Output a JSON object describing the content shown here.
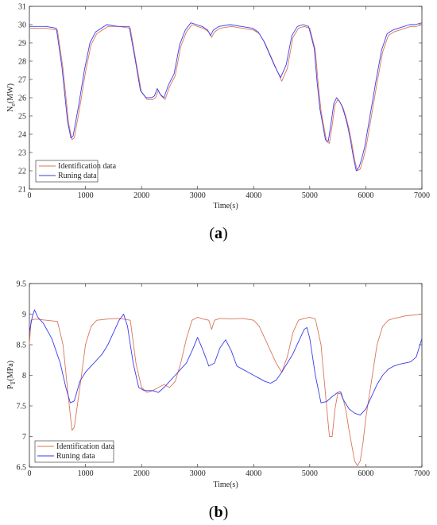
{
  "colors": {
    "identification": "#d9765a",
    "running": "#3a3af0",
    "axis": "#262626"
  },
  "chart_data": [
    {
      "type": "line",
      "panel_label": "a",
      "xlabel": "Time(s)",
      "ylabel_main": "N",
      "ylabel_sub": "e",
      "ylabel_unit": "(MW)",
      "xlim": [
        0,
        7000
      ],
      "ylim": [
        21,
        31
      ],
      "xticks": [
        0,
        1000,
        2000,
        3000,
        4000,
        5000,
        6000,
        7000
      ],
      "yticks": [
        21,
        22,
        23,
        24,
        25,
        26,
        27,
        28,
        29,
        30,
        31
      ],
      "grid": false,
      "legend_position": "bottom-left",
      "series": [
        {
          "name": "Identification data",
          "color_key": "identification",
          "x": [
            0,
            300,
            500,
            600,
            700,
            760,
            800,
            900,
            1000,
            1100,
            1200,
            1400,
            1600,
            1800,
            1900,
            2000,
            2100,
            2200,
            2250,
            2300,
            2350,
            2420,
            2500,
            2600,
            2700,
            2800,
            2900,
            3000,
            3100,
            3200,
            3250,
            3300,
            3400,
            3600,
            3800,
            4000,
            4100,
            4200,
            4300,
            4400,
            4500,
            4600,
            4700,
            4800,
            4900,
            5000,
            5100,
            5150,
            5200,
            5300,
            5350,
            5400,
            5450,
            5500,
            5550,
            5600,
            5650,
            5700,
            5750,
            5800,
            5850,
            5900,
            5950,
            6000,
            6100,
            6200,
            6300,
            6400,
            6500,
            6600,
            6700,
            6800,
            6900,
            7000
          ],
          "values": [
            29.8,
            29.8,
            29.7,
            27.6,
            24.6,
            23.7,
            23.8,
            25.5,
            27.4,
            28.9,
            29.5,
            29.9,
            29.9,
            29.8,
            28.0,
            26.3,
            25.9,
            25.9,
            26.0,
            26.4,
            26.1,
            25.9,
            26.6,
            27.2,
            28.8,
            29.6,
            30.0,
            29.9,
            29.8,
            29.6,
            29.3,
            29.6,
            29.8,
            29.9,
            29.8,
            29.7,
            29.5,
            29.0,
            28.3,
            27.6,
            26.9,
            27.6,
            29.3,
            29.8,
            29.9,
            29.8,
            28.6,
            26.8,
            25.3,
            23.6,
            23.5,
            24.5,
            25.6,
            25.9,
            25.7,
            25.4,
            24.9,
            24.3,
            23.5,
            22.6,
            22.0,
            22.1,
            22.6,
            23.2,
            25.0,
            26.8,
            28.5,
            29.4,
            29.6,
            29.7,
            29.8,
            29.9,
            29.9,
            30.0
          ]
        },
        {
          "name": "Runing data",
          "color_key": "running",
          "x": [
            0,
            300,
            480,
            580,
            680,
            740,
            780,
            880,
            980,
            1080,
            1180,
            1380,
            1580,
            1780,
            1880,
            1980,
            2080,
            2180,
            2230,
            2280,
            2330,
            2400,
            2480,
            2580,
            2680,
            2780,
            2880,
            2980,
            3080,
            3180,
            3230,
            3280,
            3380,
            3580,
            3780,
            3980,
            4080,
            4180,
            4280,
            4380,
            4480,
            4580,
            4680,
            4780,
            4880,
            4980,
            5080,
            5130,
            5180,
            5280,
            5330,
            5380,
            5430,
            5480,
            5530,
            5580,
            5630,
            5680,
            5730,
            5780,
            5830,
            5880,
            5930,
            5980,
            6080,
            6180,
            6280,
            6380,
            6480,
            6580,
            6680,
            6780,
            6880,
            7000
          ],
          "values": [
            29.9,
            29.9,
            29.8,
            27.7,
            24.7,
            23.8,
            23.9,
            25.6,
            27.5,
            29.0,
            29.6,
            30.0,
            29.9,
            29.9,
            28.2,
            26.4,
            26.0,
            26.0,
            26.1,
            26.5,
            26.2,
            26.0,
            26.7,
            27.3,
            28.9,
            29.7,
            30.1,
            30.0,
            29.9,
            29.7,
            29.4,
            29.7,
            29.9,
            30.0,
            29.9,
            29.8,
            29.6,
            29.1,
            28.4,
            27.7,
            27.1,
            27.8,
            29.4,
            29.9,
            30.0,
            29.9,
            28.7,
            26.9,
            25.4,
            23.7,
            23.6,
            24.6,
            25.7,
            26.0,
            25.8,
            25.5,
            25.0,
            24.4,
            23.6,
            22.7,
            22.0,
            22.2,
            22.7,
            23.3,
            25.1,
            26.9,
            28.6,
            29.5,
            29.7,
            29.8,
            29.9,
            30.0,
            30.0,
            30.1
          ]
        }
      ]
    },
    {
      "type": "line",
      "panel_label": "b",
      "xlabel": "Time(s)",
      "ylabel_main": "P",
      "ylabel_sub": "T",
      "ylabel_unit": "(MPa)",
      "xlim": [
        0,
        7000
      ],
      "ylim": [
        6.5,
        9.5
      ],
      "xticks": [
        0,
        1000,
        2000,
        3000,
        4000,
        5000,
        6000,
        7000
      ],
      "yticks": [
        6.5,
        7,
        7.5,
        8,
        8.5,
        9,
        9.5
      ],
      "grid": false,
      "legend_position": "bottom-left",
      "series": [
        {
          "name": "Identification data",
          "color_key": "identification",
          "x": [
            0,
            30,
            100,
            300,
            500,
            600,
            700,
            760,
            800,
            900,
            1000,
            1100,
            1200,
            1400,
            1600,
            1800,
            1900,
            2000,
            2100,
            2200,
            2300,
            2400,
            2500,
            2600,
            2700,
            2800,
            2900,
            3000,
            3100,
            3200,
            3250,
            3300,
            3400,
            3600,
            3800,
            4000,
            4100,
            4200,
            4300,
            4400,
            4500,
            4600,
            4700,
            4800,
            4900,
            5000,
            5100,
            5200,
            5300,
            5350,
            5400,
            5450,
            5500,
            5550,
            5600,
            5650,
            5700,
            5750,
            5800,
            5850,
            5900,
            5950,
            6000,
            6100,
            6200,
            6300,
            6400,
            6500,
            6600,
            6700,
            6800,
            6900,
            7000
          ],
          "values": [
            8.5,
            8.9,
            8.92,
            8.9,
            8.88,
            8.5,
            7.6,
            7.1,
            7.15,
            7.8,
            8.5,
            8.8,
            8.9,
            8.92,
            8.93,
            8.9,
            8.2,
            7.8,
            7.72,
            7.75,
            7.8,
            7.85,
            7.8,
            7.9,
            8.2,
            8.6,
            8.9,
            8.95,
            8.92,
            8.9,
            8.75,
            8.9,
            8.93,
            8.92,
            8.93,
            8.9,
            8.8,
            8.6,
            8.4,
            8.2,
            8.05,
            8.3,
            8.7,
            8.9,
            8.93,
            8.95,
            8.92,
            8.5,
            7.5,
            7.0,
            7.0,
            7.45,
            7.7,
            7.7,
            7.6,
            7.4,
            7.1,
            6.85,
            6.6,
            6.52,
            6.6,
            6.9,
            7.3,
            7.9,
            8.5,
            8.8,
            8.9,
            8.93,
            8.95,
            8.97,
            8.98,
            8.99,
            9.0
          ]
        },
        {
          "name": "Runing data",
          "color_key": "running",
          "x": [
            0,
            50,
            90,
            150,
            250,
            400,
            550,
            650,
            730,
            800,
            900,
            1000,
            1100,
            1200,
            1300,
            1400,
            1500,
            1600,
            1680,
            1750,
            1850,
            1950,
            2050,
            2200,
            2300,
            2400,
            2500,
            2600,
            2700,
            2800,
            2900,
            3000,
            3100,
            3200,
            3300,
            3400,
            3500,
            3600,
            3700,
            3800,
            3900,
            4000,
            4100,
            4200,
            4300,
            4400,
            4500,
            4600,
            4700,
            4800,
            4900,
            4950,
            5000,
            5100,
            5200,
            5300,
            5400,
            5500,
            5550,
            5600,
            5700,
            5800,
            5900,
            6000,
            6100,
            6200,
            6300,
            6400,
            6500,
            6600,
            6700,
            6800,
            6900,
            7000
          ],
          "values": [
            8.7,
            8.95,
            9.07,
            8.95,
            8.85,
            8.6,
            8.2,
            7.8,
            7.55,
            7.58,
            7.9,
            8.05,
            8.15,
            8.25,
            8.35,
            8.5,
            8.7,
            8.9,
            9.0,
            8.8,
            8.2,
            7.8,
            7.75,
            7.75,
            7.72,
            7.8,
            7.9,
            8.0,
            8.1,
            8.2,
            8.4,
            8.62,
            8.4,
            8.15,
            8.2,
            8.45,
            8.58,
            8.4,
            8.15,
            8.1,
            8.05,
            8.0,
            7.95,
            7.9,
            7.87,
            7.92,
            8.05,
            8.2,
            8.35,
            8.55,
            8.75,
            8.78,
            8.6,
            8.0,
            7.55,
            7.57,
            7.65,
            7.72,
            7.73,
            7.6,
            7.45,
            7.38,
            7.35,
            7.45,
            7.65,
            7.85,
            8.0,
            8.1,
            8.15,
            8.18,
            8.2,
            8.22,
            8.3,
            8.6
          ]
        }
      ]
    }
  ]
}
